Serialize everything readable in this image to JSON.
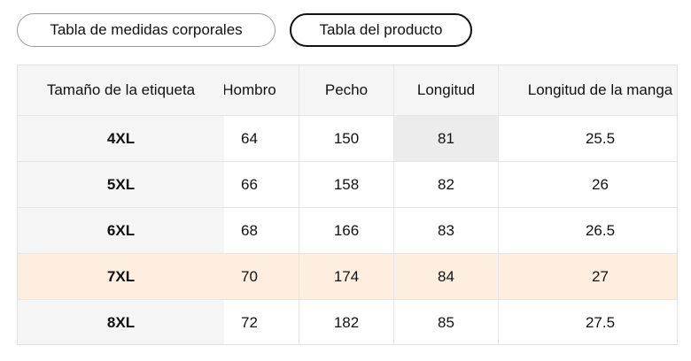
{
  "tabs": [
    "Tabla de medidas corporales",
    "Tabla del producto"
  ],
  "table": {
    "header": [
      "Tamaño de la etiqueta",
      "Hombro",
      "Pecho",
      "Longitud",
      "Longitud de la manga"
    ],
    "rows": [
      [
        "4XL",
        64,
        150,
        81,
        25.5
      ],
      [
        "5XL",
        66,
        158,
        82,
        26
      ],
      [
        "6XL",
        68,
        166,
        83,
        26.5
      ],
      [
        "7XL",
        70,
        174,
        84,
        27
      ],
      [
        "8XL",
        72,
        182,
        85,
        27.5
      ]
    ]
  }
}
